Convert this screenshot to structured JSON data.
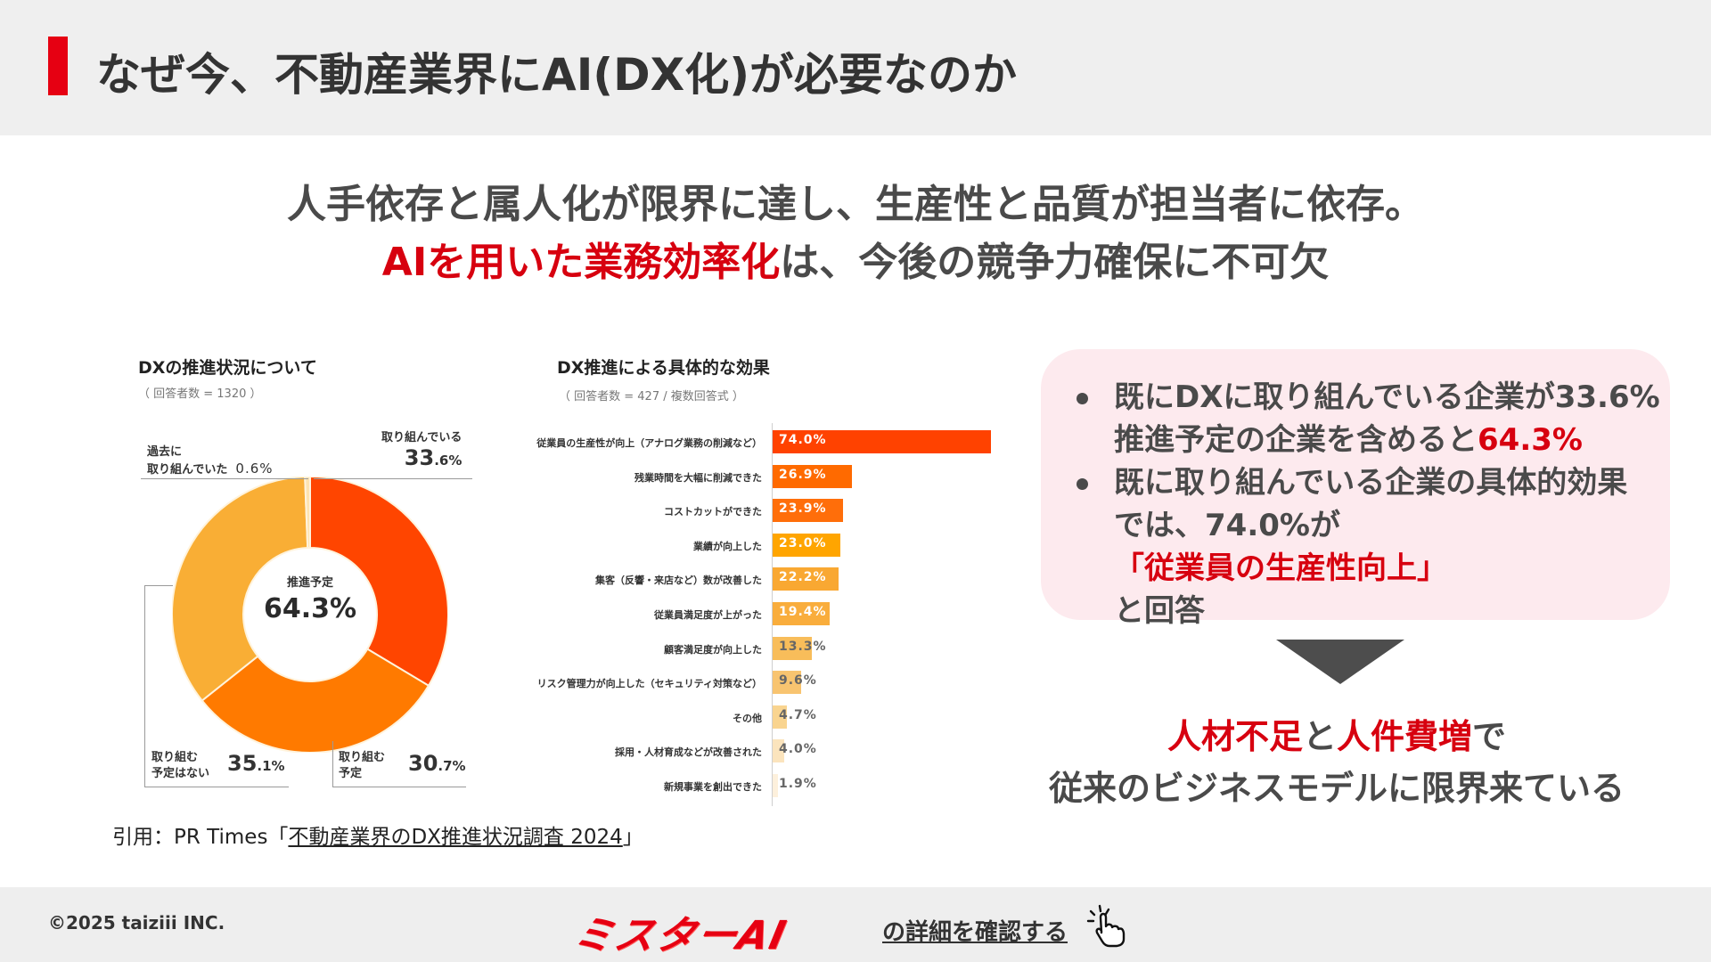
{
  "header": {
    "title": "なぜ今、不動産業界にAI(DX化)が必要なのか",
    "accent_color": "#e60012"
  },
  "headline": {
    "line1": "人手依存と属人化が限界に達し、生産性と品質が担当者に依存。",
    "line2_red": "AIを用いた業務効率化",
    "line2_rest": "は、今後の競争力確保に不可欠"
  },
  "donut_chart": {
    "title": "DXの推進状況について",
    "subtitle": "（ 回答者数 = 1320 ）",
    "center_label": "推進予定",
    "center_value": "64.3%",
    "labels": {
      "doing": {
        "line1": "取り組んでいる",
        "big": "33",
        "small": ".6%"
      },
      "past": {
        "line1": "過去に",
        "line2": "取り組んでいた",
        "value": "0.6%"
      },
      "none": {
        "line1": "取り組む",
        "line2": "予定はない",
        "big": "35",
        "small": ".1%"
      },
      "planned": {
        "line1": "取り組む",
        "line2": "予定",
        "big": "30",
        "small": ".7%"
      }
    }
  },
  "bar_chart": {
    "title": "DX推進による具体的な効果",
    "subtitle": "（ 回答者数 = 427 / 複数回答式 ）",
    "rows": [
      {
        "label": "従業員の生産性が向上（アナログ業務の削減など）",
        "value": "74.0%"
      },
      {
        "label": "残業時間を大幅に削減できた",
        "value": "26.9%"
      },
      {
        "label": "コストカットができた",
        "value": "23.9%"
      },
      {
        "label": "業績が向上した",
        "value": "23.0%"
      },
      {
        "label": "集客（反響・来店など）数が改善した",
        "value": "22.2%"
      },
      {
        "label": "従業員満足度が上がった",
        "value": "19.4%"
      },
      {
        "label": "顧客満足度が向上した",
        "value": "13.3%"
      },
      {
        "label": "リスク管理力が向上した（セキュリティ対策など）",
        "value": "9.6%"
      },
      {
        "label": "その他",
        "value": "4.7%"
      },
      {
        "label": "採用・人材育成などが改善された",
        "value": "4.0%"
      },
      {
        "label": "新規事業を創出できた",
        "value": "1.9%"
      }
    ]
  },
  "chart_data": [
    {
      "type": "pie",
      "title": "DXの推進状況について",
      "subtitle": "（ 回答者数 = 1320 ）",
      "categories": [
        "取り組んでいる",
        "取り組む予定",
        "取り組む予定はない",
        "過去に取り組んでいた"
      ],
      "values": [
        33.6,
        30.7,
        35.1,
        0.6
      ],
      "colors": [
        "#ff4500",
        "#ff7a00",
        "#f9ae35",
        "#fde3b0"
      ],
      "donut": true,
      "center_text": "推進予定 64.3%"
    },
    {
      "type": "bar",
      "orientation": "horizontal",
      "title": "DX推進による具体的な効果",
      "subtitle": "（ 回答者数 = 427 / 複数回答式 ）",
      "categories": [
        "従業員の生産性が向上（アナログ業務の削減など）",
        "残業時間を大幅に削減できた",
        "コストカットができた",
        "業績が向上した",
        "集客（反響・来店など）数が改善した",
        "従業員満足度が上がった",
        "顧客満足度が向上した",
        "リスク管理力が向上した（セキュリティ対策など）",
        "その他",
        "採用・人材育成などが改善された",
        "新規事業を創出できた"
      ],
      "values": [
        74.0,
        26.9,
        23.9,
        23.0,
        22.2,
        19.4,
        13.3,
        9.6,
        4.7,
        4.0,
        1.9
      ],
      "xlabel": "",
      "ylabel": "",
      "unit": "%",
      "grid": false
    }
  ],
  "citation": {
    "prefix": "引用：PR Times「",
    "link_text": "不動産業界のDX推進状況調査 2024",
    "suffix": "」"
  },
  "callout": {
    "bullet1_line1": "既にDXに取り組んでいる企業が33.6%",
    "bullet1_line2_pre": "推進予定の企業を含めると",
    "bullet1_line2_red": "64.3%",
    "bullet2_line1": "既に取り組んでいる企業の具体的効果",
    "bullet2_line2_pre": "では、74.0%が",
    "bullet2_line2_red": "「従業員の生産性向上」",
    "bullet2_line3": "と回答",
    "background": "#fdeaee"
  },
  "conclusion": {
    "red1": "人材不足",
    "mid": "と",
    "red2": "人件費増",
    "end": "で",
    "line2": "従来のビジネスモデルに限界来ている"
  },
  "footer": {
    "copyright": "©2025 taiziii INC.",
    "brand": "ミスターAI",
    "link_text": "の詳細を確認する",
    "icon": "pointing-hand-click-icon"
  }
}
